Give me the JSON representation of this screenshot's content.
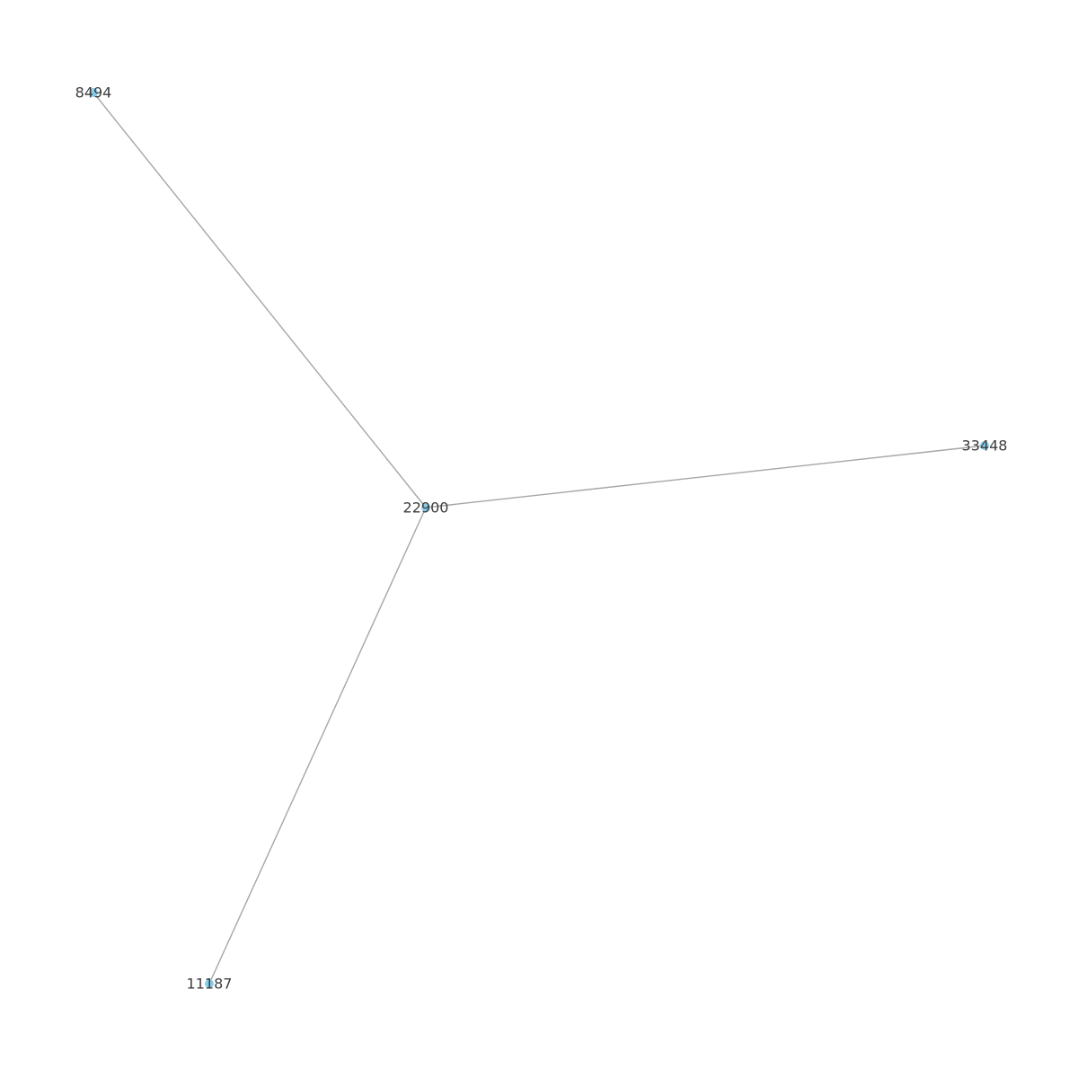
{
  "graph": {
    "colors": {
      "edge": "#a6a6a6",
      "node": "#87ceeb",
      "label": "#3d3d3d",
      "background": "#ffffff"
    },
    "nodes": [
      {
        "id": "n22900",
        "label": "22900"
      },
      {
        "id": "n8494",
        "label": "8494"
      },
      {
        "id": "n33448",
        "label": "33448"
      },
      {
        "id": "n11187",
        "label": "11187"
      }
    ],
    "edges": [
      {
        "source": "n22900",
        "target": "n8494"
      },
      {
        "source": "n22900",
        "target": "n33448"
      },
      {
        "source": "n22900",
        "target": "n11187"
      }
    ]
  }
}
